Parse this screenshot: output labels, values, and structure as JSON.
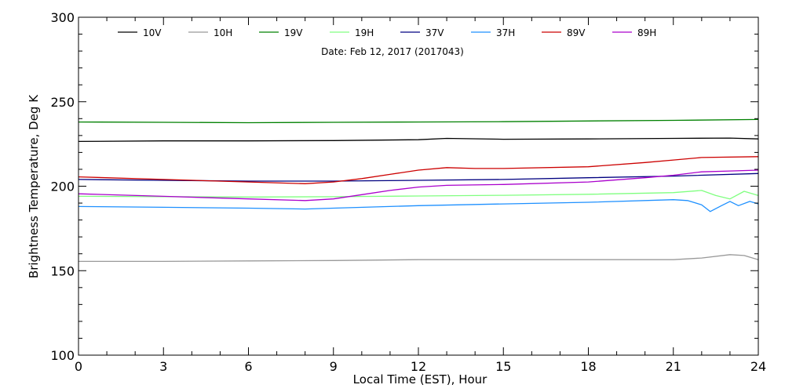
{
  "chart_data": {
    "type": "line",
    "title": "",
    "annotation": "Date: Feb 12, 2017 (2017043)",
    "xlabel": "Local Time (EST), Hour",
    "ylabel": "Brightness Temperature, Deg K",
    "xlim": [
      0,
      24
    ],
    "ylim": [
      100,
      300
    ],
    "xticks": [
      0,
      3,
      6,
      9,
      12,
      15,
      18,
      21,
      24
    ],
    "xtick_labels": [
      "0",
      "3",
      "6",
      "9",
      "12",
      "15",
      "18",
      "21",
      "24"
    ],
    "yticks": [
      100,
      150,
      200,
      250,
      300
    ],
    "ytick_labels": [
      "100",
      "150",
      "200",
      "250",
      "300"
    ],
    "grid": false,
    "legend_position": "top",
    "series": [
      {
        "name": "10V",
        "color": "#000000",
        "x": [
          0,
          3,
          6,
          9,
          12,
          13,
          15,
          18,
          21,
          23,
          24
        ],
        "y": [
          226.5,
          226.8,
          226.8,
          227.0,
          227.5,
          228.3,
          227.8,
          228.0,
          228.3,
          228.5,
          228.0
        ]
      },
      {
        "name": "10H",
        "color": "#999999",
        "x": [
          0,
          3,
          6,
          9,
          12,
          15,
          18,
          21,
          22,
          23,
          23.5,
          24
        ],
        "y": [
          155.5,
          155.5,
          155.8,
          156.0,
          156.5,
          156.5,
          156.5,
          156.5,
          157.5,
          159.5,
          159.0,
          156.5
        ]
      },
      {
        "name": "19V",
        "color": "#008000",
        "x": [
          0,
          3,
          6,
          9,
          12,
          15,
          18,
          21,
          24
        ],
        "y": [
          238.0,
          237.8,
          237.6,
          237.8,
          238.0,
          238.2,
          238.6,
          239.0,
          239.5
        ]
      },
      {
        "name": "19H",
        "color": "#80ff80",
        "x": [
          0,
          3,
          6,
          9,
          12,
          15,
          18,
          21,
          22,
          22.5,
          23,
          23.5,
          24
        ],
        "y": [
          194.0,
          193.8,
          193.6,
          193.8,
          194.2,
          194.6,
          195.2,
          196.2,
          197.5,
          194.5,
          192.5,
          197.0,
          194.5
        ]
      },
      {
        "name": "37V",
        "color": "#000080",
        "x": [
          0,
          3,
          6,
          9,
          12,
          15,
          18,
          21,
          24
        ],
        "y": [
          204.0,
          203.5,
          203.0,
          203.0,
          203.5,
          204.0,
          205.0,
          206.0,
          207.5
        ]
      },
      {
        "name": "37H",
        "color": "#1e90ff",
        "x": [
          0,
          3,
          6,
          8,
          9,
          12,
          15,
          18,
          21,
          21.5,
          22,
          22.3,
          22.7,
          23,
          23.3,
          23.7,
          24
        ],
        "y": [
          188.0,
          187.5,
          187.0,
          186.5,
          187.0,
          188.5,
          189.5,
          190.5,
          192.0,
          191.5,
          189.0,
          185.0,
          188.5,
          191.0,
          188.5,
          191.0,
          189.5
        ]
      },
      {
        "name": "89V",
        "color": "#cc0000",
        "x": [
          0,
          3,
          6,
          8,
          9,
          10,
          11,
          12,
          13,
          14,
          15,
          18,
          20,
          21,
          22,
          24
        ],
        "y": [
          205.5,
          204.0,
          202.5,
          201.5,
          202.5,
          204.5,
          207.0,
          209.5,
          211.0,
          210.5,
          210.5,
          211.5,
          214.0,
          215.5,
          217.0,
          217.5
        ]
      },
      {
        "name": "89H",
        "color": "#aa00cc",
        "x": [
          0,
          3,
          6,
          8,
          9,
          10,
          11,
          12,
          13,
          15,
          18,
          20,
          21,
          22,
          23,
          24
        ],
        "y": [
          195.5,
          194.0,
          192.5,
          191.5,
          192.5,
          195.0,
          197.5,
          199.5,
          200.5,
          201.0,
          202.5,
          205.0,
          206.5,
          208.5,
          209.0,
          209.5
        ]
      }
    ]
  }
}
